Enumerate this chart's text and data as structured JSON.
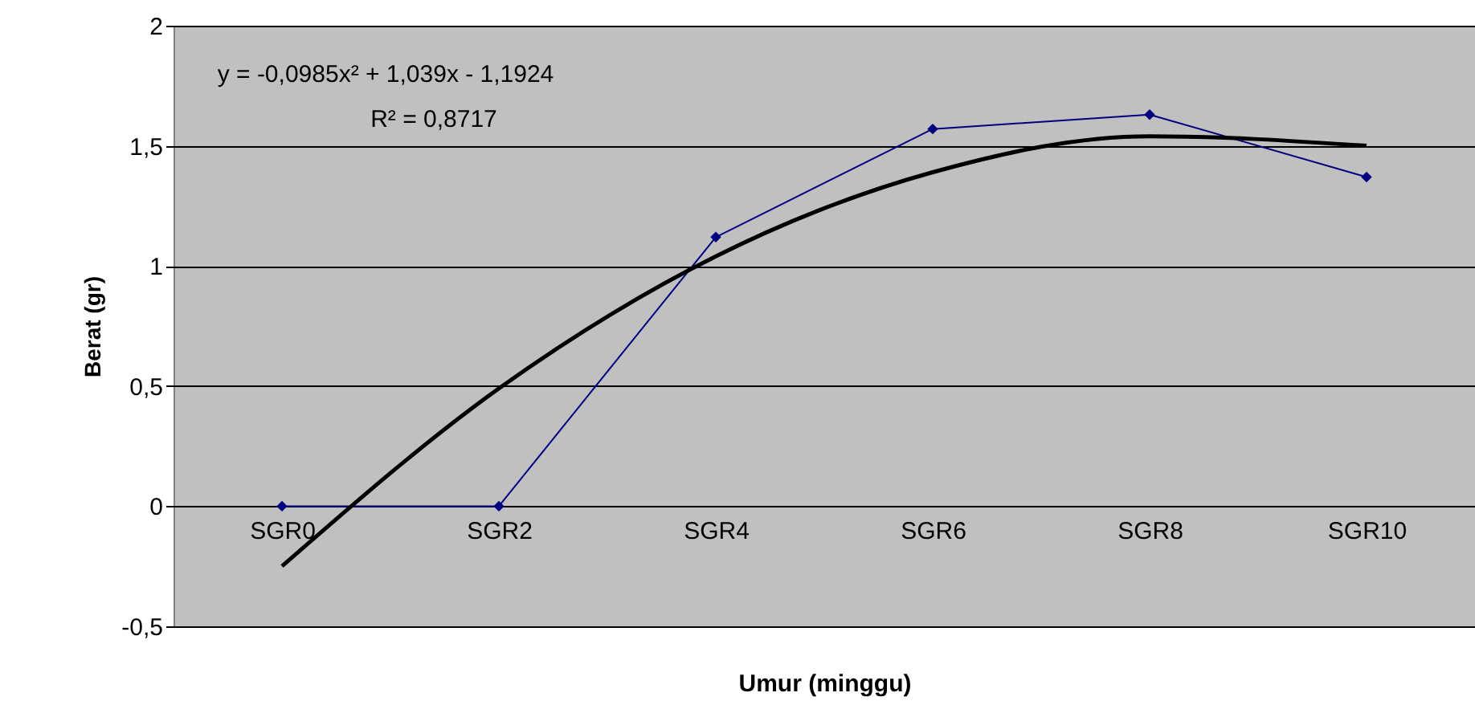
{
  "chart_data": {
    "type": "line",
    "xlabel": "Umur (minggu)",
    "ylabel": "Berat (gr)",
    "categories": [
      "SGR0",
      "SGR2",
      "SGR4",
      "SGR6",
      "SGR8",
      "SGR10"
    ],
    "series": [
      {
        "color": "#000080",
        "values": [
          0,
          0,
          1.12,
          1.57,
          1.63,
          1.37
        ]
      },
      {
        "type": "line",
        "color": "#000000",
        "marker": "none",
        "x": [
          "SGR0",
          "SGR2",
          "SGR4",
          "SGR6",
          "SGR8",
          "SGR10"
        ],
        "values": [
          -0.25,
          0.49,
          1.04,
          1.39,
          1.54,
          1.5
        ]
      }
    ],
    "ylim": [
      -0.5,
      2
    ],
    "yticks": [
      {
        "value": -0.5,
        "label": "-0,5"
      },
      0,
      {
        "value": 0.5,
        "label": "0,5"
      },
      1,
      {
        "value": 1.5,
        "label": "1,5"
      },
      2
    ],
    "grid": "y",
    "marker": "diamond",
    "annotations": [
      "y = -0,0985x² + 1,039x - 1,1924",
      "R² = 0,8717"
    ]
  }
}
